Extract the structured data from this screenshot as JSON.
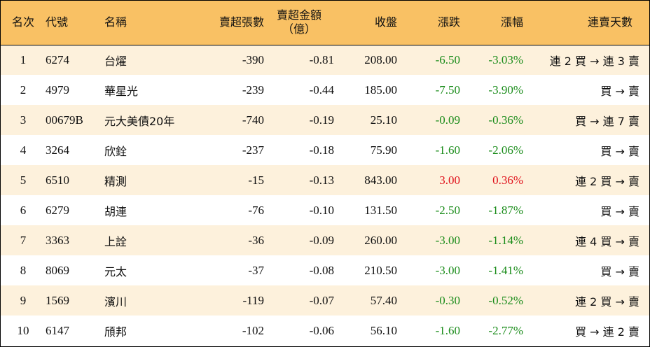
{
  "colors": {
    "header_bg": "#f9c164",
    "odd_row_bg": "#fdf1dc",
    "even_row_bg": "#ffffff",
    "down": "#1a8c1a",
    "up": "#e0101a"
  },
  "headers": {
    "rank": "名次",
    "code": "代號",
    "name": "名稱",
    "sell_lots": "賣超張數",
    "sell_amount_line1": "賣超金額",
    "sell_amount_line2": "（億）",
    "close": "收盤",
    "change": "漲跌",
    "change_pct": "漲幅",
    "streak": "連賣天數"
  },
  "rows": [
    {
      "rank": "1",
      "code": "6274",
      "name": "台燿",
      "sell_lots": "-390",
      "sell_amount": "-0.81",
      "close": "208.00",
      "change": "-6.50",
      "change_pct": "-3.03%",
      "direction": "down",
      "streak": "連 2 買 → 連 3 賣"
    },
    {
      "rank": "2",
      "code": "4979",
      "name": "華星光",
      "sell_lots": "-239",
      "sell_amount": "-0.44",
      "close": "185.00",
      "change": "-7.50",
      "change_pct": "-3.90%",
      "direction": "down",
      "streak": "買 → 賣"
    },
    {
      "rank": "3",
      "code": "00679B",
      "name": "元大美債20年",
      "sell_lots": "-740",
      "sell_amount": "-0.19",
      "close": "25.10",
      "change": "-0.09",
      "change_pct": "-0.36%",
      "direction": "down",
      "streak": "買 → 連 7 賣"
    },
    {
      "rank": "4",
      "code": "3264",
      "name": "欣銓",
      "sell_lots": "-237",
      "sell_amount": "-0.18",
      "close": "75.90",
      "change": "-1.60",
      "change_pct": "-2.06%",
      "direction": "down",
      "streak": "買 → 賣"
    },
    {
      "rank": "5",
      "code": "6510",
      "name": "精測",
      "sell_lots": "-15",
      "sell_amount": "-0.13",
      "close": "843.00",
      "change": "3.00",
      "change_pct": "0.36%",
      "direction": "up",
      "streak": "連 2 買 → 賣"
    },
    {
      "rank": "6",
      "code": "6279",
      "name": "胡連",
      "sell_lots": "-76",
      "sell_amount": "-0.10",
      "close": "131.50",
      "change": "-2.50",
      "change_pct": "-1.87%",
      "direction": "down",
      "streak": "買 → 賣"
    },
    {
      "rank": "7",
      "code": "3363",
      "name": "上詮",
      "sell_lots": "-36",
      "sell_amount": "-0.09",
      "close": "260.00",
      "change": "-3.00",
      "change_pct": "-1.14%",
      "direction": "down",
      "streak": "連 4 買 → 賣"
    },
    {
      "rank": "8",
      "code": "8069",
      "name": "元太",
      "sell_lots": "-37",
      "sell_amount": "-0.08",
      "close": "210.50",
      "change": "-3.00",
      "change_pct": "-1.41%",
      "direction": "down",
      "streak": "買 → 賣"
    },
    {
      "rank": "9",
      "code": "1569",
      "name": "濱川",
      "sell_lots": "-119",
      "sell_amount": "-0.07",
      "close": "57.40",
      "change": "-0.30",
      "change_pct": "-0.52%",
      "direction": "down",
      "streak": "連 2 買 → 賣"
    },
    {
      "rank": "10",
      "code": "6147",
      "name": "頎邦",
      "sell_lots": "-102",
      "sell_amount": "-0.06",
      "close": "56.10",
      "change": "-1.60",
      "change_pct": "-2.77%",
      "direction": "down",
      "streak": "買 → 連 2 賣"
    }
  ]
}
